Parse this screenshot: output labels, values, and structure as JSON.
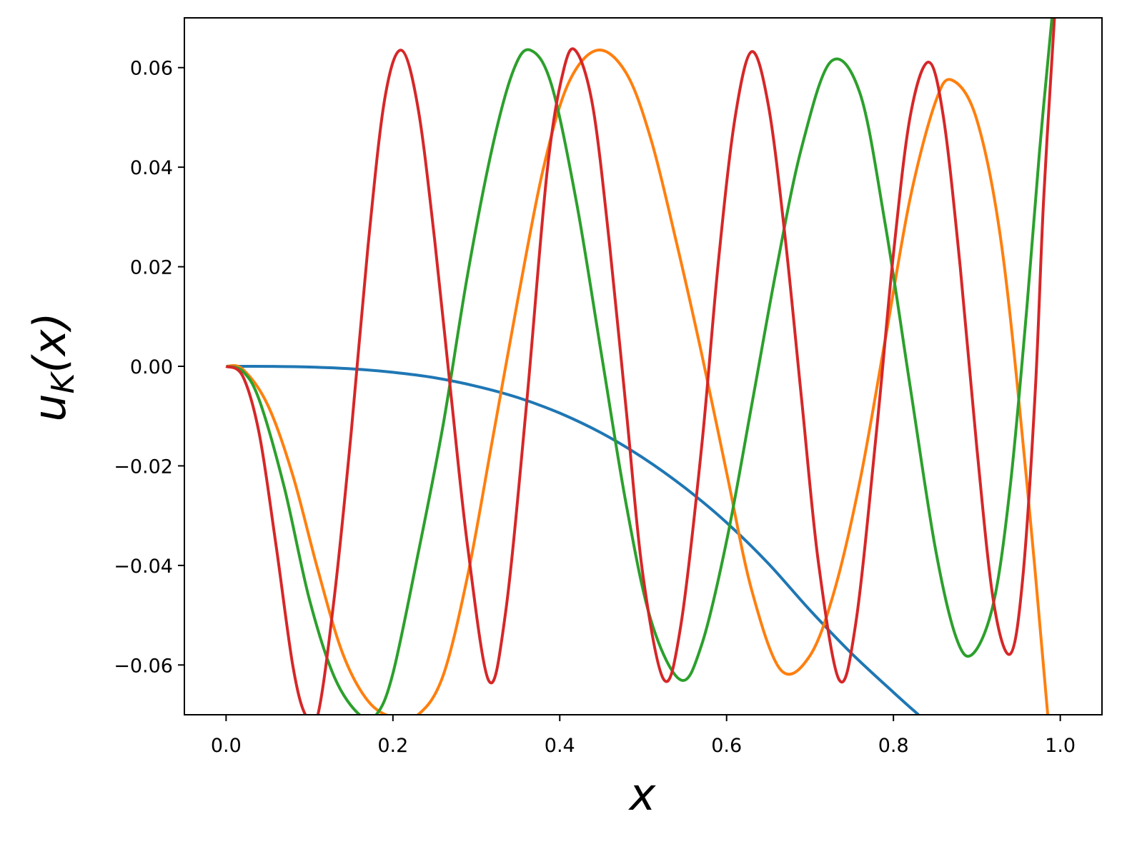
{
  "chart_data": {
    "type": "line",
    "xlabel": "x",
    "ylabel": {
      "base": "u",
      "sub": "K",
      "suffix": "(x)"
    },
    "xlim": [
      -0.05,
      1.05
    ],
    "ylim": [
      -0.07,
      0.07
    ],
    "x_ticks": [
      0.0,
      0.2,
      0.4,
      0.6,
      0.8,
      1.0
    ],
    "x_tick_labels": [
      "0.0",
      "0.2",
      "0.4",
      "0.6",
      "0.8",
      "1.0"
    ],
    "y_ticks": [
      0.06,
      0.04,
      0.02,
      0.0,
      -0.02,
      -0.04,
      -0.06
    ],
    "y_tick_labels": [
      "0.06",
      "0.04",
      "0.02",
      "0.00",
      "−0.02",
      "−0.04",
      "−0.06"
    ],
    "grid": false,
    "legend": "none",
    "series": [
      {
        "color": "#1f77b4",
        "points": [
          [
            0.0,
            0.0
          ],
          [
            0.05,
            -2e-05
          ],
          [
            0.1,
            -0.00015
          ],
          [
            0.15,
            -0.0005
          ],
          [
            0.2,
            -0.0012
          ],
          [
            0.25,
            -0.0023
          ],
          [
            0.3,
            -0.004
          ],
          [
            0.35,
            -0.0063
          ],
          [
            0.4,
            -0.0094
          ],
          [
            0.45,
            -0.0134
          ],
          [
            0.5,
            -0.0184
          ],
          [
            0.55,
            -0.0244
          ],
          [
            0.6,
            -0.0314
          ],
          [
            0.65,
            -0.0396
          ],
          [
            0.7,
            -0.049
          ],
          [
            0.75,
            -0.0577
          ],
          [
            0.8,
            -0.0655
          ],
          [
            0.83,
            -0.07
          ]
        ]
      },
      {
        "color": "#ff7f0e",
        "points": [
          [
            0.0,
            0.0
          ],
          [
            0.02,
            -0.0006
          ],
          [
            0.05,
            -0.0078
          ],
          [
            0.08,
            -0.0219
          ],
          [
            0.11,
            -0.0409
          ],
          [
            0.14,
            -0.0578
          ],
          [
            0.17,
            -0.0672
          ],
          [
            0.2,
            -0.0705
          ],
          [
            0.23,
            -0.07
          ],
          [
            0.26,
            -0.0622
          ],
          [
            0.29,
            -0.0417
          ],
          [
            0.32,
            -0.0141
          ],
          [
            0.35,
            0.0137
          ],
          [
            0.38,
            0.0395
          ],
          [
            0.41,
            0.0567
          ],
          [
            0.445,
            0.0635
          ],
          [
            0.48,
            0.0588
          ],
          [
            0.51,
            0.0452
          ],
          [
            0.54,
            0.0248
          ],
          [
            0.57,
            0.0026
          ],
          [
            0.6,
            -0.0213
          ],
          [
            0.63,
            -0.0449
          ],
          [
            0.665,
            -0.061
          ],
          [
            0.7,
            -0.0581
          ],
          [
            0.73,
            -0.0446
          ],
          [
            0.76,
            -0.0229
          ],
          [
            0.79,
            0.0052
          ],
          [
            0.82,
            0.0337
          ],
          [
            0.85,
            0.0529
          ],
          [
            0.87,
            0.0575
          ],
          [
            0.9,
            0.0495
          ],
          [
            0.93,
            0.0239
          ],
          [
            0.96,
            -0.0234
          ],
          [
            0.985,
            -0.07
          ]
        ]
      },
      {
        "color": "#2ca02c",
        "points": [
          [
            0.0,
            0.0
          ],
          [
            0.02,
            -0.001
          ],
          [
            0.04,
            -0.0069
          ],
          [
            0.07,
            -0.0245
          ],
          [
            0.1,
            -0.0469
          ],
          [
            0.13,
            -0.0625
          ],
          [
            0.16,
            -0.07
          ],
          [
            0.18,
            -0.07
          ],
          [
            0.2,
            -0.0617
          ],
          [
            0.23,
            -0.0378
          ],
          [
            0.26,
            -0.0119
          ],
          [
            0.29,
            0.0189
          ],
          [
            0.32,
            0.0446
          ],
          [
            0.345,
            0.0597
          ],
          [
            0.365,
            0.0635
          ],
          [
            0.39,
            0.0566
          ],
          [
            0.42,
            0.033
          ],
          [
            0.45,
            0.0024
          ],
          [
            0.48,
            -0.0281
          ],
          [
            0.51,
            -0.0514
          ],
          [
            0.545,
            -0.063
          ],
          [
            0.57,
            -0.056
          ],
          [
            0.6,
            -0.0351
          ],
          [
            0.63,
            -0.0079
          ],
          [
            0.66,
            0.0198
          ],
          [
            0.69,
            0.044
          ],
          [
            0.725,
            0.0612
          ],
          [
            0.76,
            0.0548
          ],
          [
            0.79,
            0.0287
          ],
          [
            0.82,
            -0.004
          ],
          [
            0.85,
            -0.0363
          ],
          [
            0.875,
            -0.0544
          ],
          [
            0.895,
            -0.0578
          ],
          [
            0.92,
            -0.0475
          ],
          [
            0.94,
            -0.0241
          ],
          [
            0.96,
            0.0118
          ],
          [
            0.975,
            0.043
          ],
          [
            0.99,
            0.07
          ]
        ]
      },
      {
        "color": "#d62728",
        "points": [
          [
            0.0,
            0.0
          ],
          [
            0.02,
            -0.002
          ],
          [
            0.04,
            -0.0138
          ],
          [
            0.06,
            -0.0361
          ],
          [
            0.08,
            -0.0601
          ],
          [
            0.095,
            -0.07
          ],
          [
            0.11,
            -0.07
          ],
          [
            0.13,
            -0.046
          ],
          [
            0.15,
            -0.0132
          ],
          [
            0.17,
            0.0239
          ],
          [
            0.19,
            0.0535
          ],
          [
            0.21,
            0.0635
          ],
          [
            0.23,
            0.052
          ],
          [
            0.25,
            0.0254
          ],
          [
            0.27,
            -0.0063
          ],
          [
            0.29,
            -0.0368
          ],
          [
            0.315,
            -0.0632
          ],
          [
            0.335,
            -0.0495
          ],
          [
            0.36,
            -0.0079
          ],
          [
            0.385,
            0.0394
          ],
          [
            0.405,
            0.0598
          ],
          [
            0.42,
            0.0632
          ],
          [
            0.44,
            0.0518
          ],
          [
            0.46,
            0.024
          ],
          [
            0.48,
            -0.0094
          ],
          [
            0.5,
            -0.0423
          ],
          [
            0.525,
            -0.063
          ],
          [
            0.545,
            -0.0522
          ],
          [
            0.57,
            -0.0163
          ],
          [
            0.59,
            0.0208
          ],
          [
            0.61,
            0.0498
          ],
          [
            0.63,
            0.0632
          ],
          [
            0.65,
            0.0525
          ],
          [
            0.67,
            0.0262
          ],
          [
            0.69,
            -0.0068
          ],
          [
            0.71,
            -0.0393
          ],
          [
            0.735,
            -0.063
          ],
          [
            0.755,
            -0.0514
          ],
          [
            0.78,
            -0.0126
          ],
          [
            0.8,
            0.0226
          ],
          [
            0.82,
            0.0501
          ],
          [
            0.842,
            0.0611
          ],
          [
            0.86,
            0.05
          ],
          [
            0.88,
            0.02
          ],
          [
            0.9,
            -0.0164
          ],
          [
            0.92,
            -0.0473
          ],
          [
            0.94,
            -0.0578
          ],
          [
            0.955,
            -0.0426
          ],
          [
            0.97,
            -0.005
          ],
          [
            0.98,
            0.0334
          ],
          [
            0.993,
            0.07
          ]
        ]
      }
    ]
  }
}
